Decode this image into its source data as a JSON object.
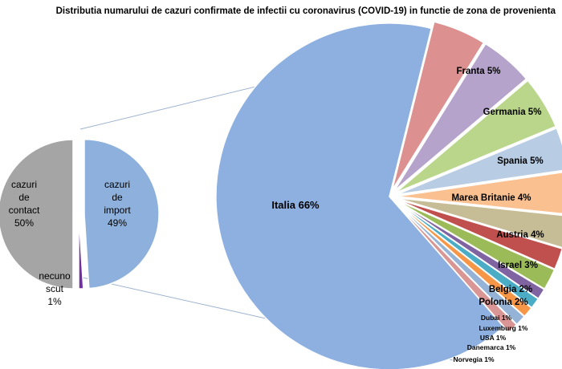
{
  "chart_data": [
    {
      "type": "pie",
      "title": "Distributia numarului de cazuri confirmate de infectii cu coronavirus (COVID-19) in functie de zona de provenienta",
      "slices": [
        {
          "label_lines": [
            "cazuri",
            "de",
            "contact"
          ],
          "value_text": "50%",
          "value": 50,
          "color": "#a5a5a5"
        },
        {
          "label_lines": [
            "cazuri",
            "de",
            "import"
          ],
          "value_text": "49%",
          "value": 49,
          "color": "#8eb0dc"
        },
        {
          "label_lines": [
            "necuno",
            "scut"
          ],
          "value_text": "1%",
          "value": 1,
          "color": "#7030a0"
        }
      ]
    },
    {
      "type": "pie",
      "note_of": "cazuri de import",
      "slices": [
        {
          "label": "Italia 66%",
          "value": 66,
          "color": "#8eb0e0"
        },
        {
          "label": "Franta 5%",
          "value": 5,
          "color": "#dc908f"
        },
        {
          "label": "Germania 5%",
          "value": 5,
          "color": "#b5a3cc"
        },
        {
          "label": "Spania 5%",
          "value": 5,
          "color": "#b9d68a"
        },
        {
          "label": "Marea Britanie 4%",
          "value": 4,
          "color": "#b8cce4"
        },
        {
          "label": "Austria 4%",
          "value": 4,
          "color": "#fac090"
        },
        {
          "label": "Israel 3%",
          "value": 3,
          "color": "#c6bd97"
        },
        {
          "label": "Belgia 2%",
          "value": 2,
          "color": "#c0504d"
        },
        {
          "label": "Polonia 2%",
          "value": 2,
          "color": "#9bbb59"
        },
        {
          "label": "Dubai 1%",
          "value": 1,
          "color": "#8064a2"
        },
        {
          "label": "Luxemburg 1%",
          "value": 1,
          "color": "#4bacc6"
        },
        {
          "label": "USA 1%",
          "value": 1,
          "color": "#f79646"
        },
        {
          "label": "Danemarca 1%",
          "value": 1,
          "color": "#95b3d7"
        },
        {
          "label": "Norvegia 1%",
          "value": 1,
          "color": "#d99694"
        }
      ]
    }
  ]
}
